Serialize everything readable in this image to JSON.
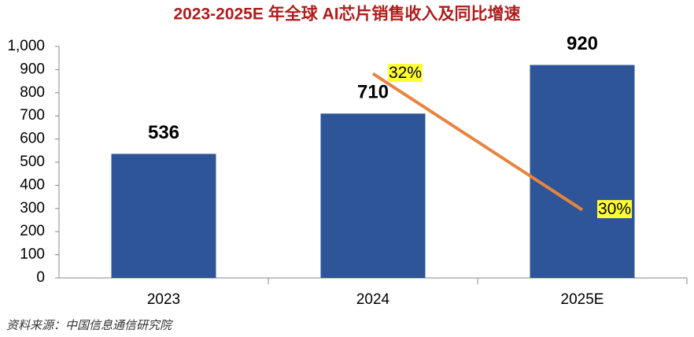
{
  "chart_data": {
    "type": "bar+line",
    "title": "2023-2025E 年全球 AI芯片销售收入及同比增速",
    "source": "资料来源：中国信息通信研究院",
    "categories": [
      "2023",
      "2024",
      "2025E"
    ],
    "series": [
      {
        "type": "bar",
        "color": "#2e5597",
        "values": [
          536,
          710,
          920
        ]
      },
      {
        "type": "line",
        "axis": "y2",
        "color": "#e9843f",
        "values": [
          null,
          32,
          30
        ],
        "value_labels": [
          null,
          "32%",
          "30%"
        ],
        "label_background": "#ffff33"
      }
    ],
    "ylim": [
      0,
      1000
    ],
    "yticks": [
      0,
      100,
      200,
      300,
      400,
      500,
      600,
      700,
      800,
      900,
      {
        "value": 1000,
        "label": "1,000"
      }
    ],
    "y2lim": [
      29,
      32.4
    ]
  }
}
